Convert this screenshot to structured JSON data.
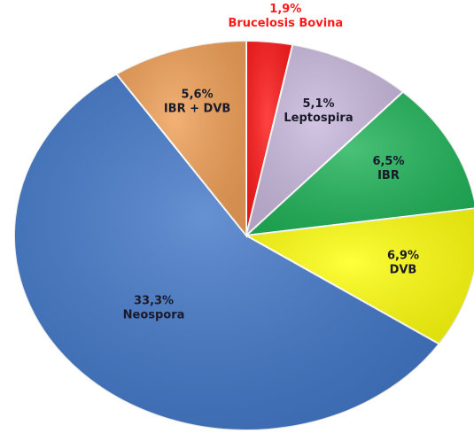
{
  "chart_data": {
    "type": "pie",
    "categories": [
      "Brucelosis Bovina",
      "Leptospira",
      "IBR",
      "DVB",
      "Neospora",
      "IBR + DVB"
    ],
    "values": [
      1.9,
      5.1,
      6.5,
      6.9,
      33.3,
      5.6
    ],
    "value_labels": [
      "1,9%",
      "5,1%",
      "6,5%",
      "6,9%",
      "33,3%",
      "5,6%"
    ],
    "colors": [
      "#ff1a1a",
      "#c9b8dd",
      "#22b45a",
      "#ffff10",
      "#4479c9",
      "#f0a058"
    ]
  }
}
